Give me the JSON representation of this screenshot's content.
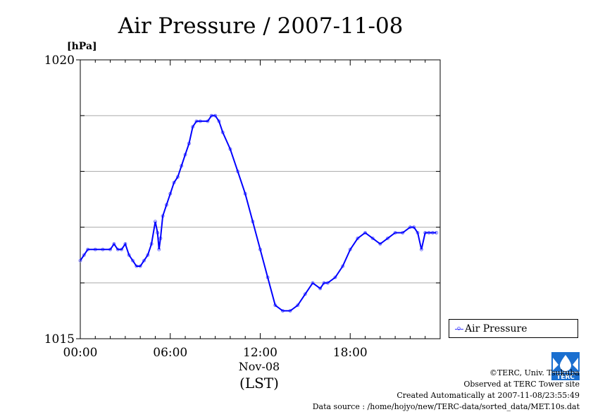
{
  "chart_data": {
    "type": "line",
    "title": "Air Pressure / 2007-11-08",
    "ylabel": "[hPa]",
    "xlabel": "(LST)",
    "date_label": "Nov-08",
    "ylim": [
      1015,
      1020
    ],
    "y_ticks": [
      "1015",
      "1020"
    ],
    "y_grid_values": [
      1016,
      1017,
      1018,
      1019
    ],
    "x_range_hours": [
      0,
      24
    ],
    "x_ticks": [
      {
        "hour": 0,
        "label": "00:00"
      },
      {
        "hour": 6,
        "label": "06:00"
      },
      {
        "hour": 12,
        "label": "12:00"
      },
      {
        "hour": 18,
        "label": "18:00"
      }
    ],
    "grid": true,
    "legend_position": "right-bottom",
    "series": [
      {
        "name": "Air Pressure",
        "color": "#0000ff",
        "marker_color": "#7777ff",
        "hours": [
          0.0,
          0.25,
          0.5,
          1.0,
          1.5,
          2.0,
          2.25,
          2.5,
          2.75,
          3.0,
          3.25,
          3.5,
          3.75,
          4.0,
          4.25,
          4.5,
          4.75,
          5.0,
          5.15,
          5.25,
          5.35,
          5.5,
          5.75,
          6.0,
          6.25,
          6.5,
          6.75,
          7.0,
          7.25,
          7.5,
          7.75,
          8.0,
          8.5,
          8.75,
          9.0,
          9.25,
          9.5,
          10.0,
          10.5,
          11.0,
          11.5,
          12.0,
          12.5,
          13.0,
          13.5,
          14.0,
          14.5,
          15.0,
          15.5,
          16.0,
          16.25,
          16.5,
          17.0,
          17.5,
          18.0,
          18.5,
          19.0,
          19.5,
          20.0,
          20.5,
          21.0,
          21.5,
          22.0,
          22.25,
          22.5,
          22.75,
          23.0,
          23.25,
          23.5,
          23.75
        ],
        "values": [
          1016.4,
          1016.5,
          1016.6,
          1016.6,
          1016.6,
          1016.6,
          1016.7,
          1016.6,
          1016.6,
          1016.7,
          1016.5,
          1016.4,
          1016.3,
          1016.3,
          1016.4,
          1016.5,
          1016.7,
          1017.1,
          1016.9,
          1016.6,
          1016.8,
          1017.2,
          1017.4,
          1017.6,
          1017.8,
          1017.9,
          1018.1,
          1018.3,
          1018.5,
          1018.8,
          1018.9,
          1018.9,
          1018.9,
          1019.0,
          1019.0,
          1018.9,
          1018.7,
          1018.4,
          1018.0,
          1017.6,
          1017.1,
          1016.6,
          1016.1,
          1015.6,
          1015.5,
          1015.5,
          1015.6,
          1015.8,
          1016.0,
          1015.9,
          1016.0,
          1016.0,
          1016.1,
          1016.3,
          1016.6,
          1016.8,
          1016.9,
          1016.8,
          1016.7,
          1016.8,
          1016.9,
          1016.9,
          1017.0,
          1017.0,
          1016.9,
          1016.6,
          1016.9,
          1016.9,
          1016.9,
          1016.9
        ]
      }
    ]
  },
  "credits": {
    "copyright": "©TERC, Univ. Tsukuba",
    "observed": "Observed at TERC Tower site",
    "created": "Created Automatically at 2007-11-08/23:55:49",
    "source": "Data source : /home/hojyo/new/TERC-data/sorted_data/MET.10s.dat"
  },
  "logo": {
    "name": "terc-logo",
    "text": "TERC",
    "color": "#1a6fd0"
  }
}
